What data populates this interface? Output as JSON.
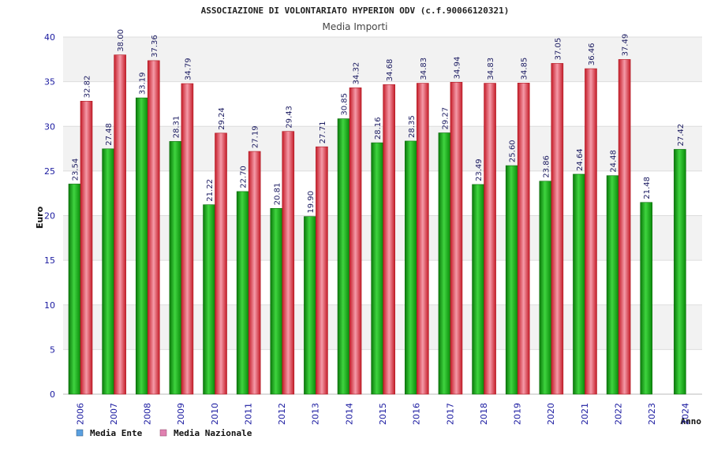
{
  "chart_data": {
    "type": "bar",
    "title": "ASSOCIAZIONE DI VOLONTARIATO HYPERION ODV (c.f.90066120321)",
    "subtitle": "Media Importi",
    "xlabel": "Anno",
    "ylabel": "Euro",
    "ylim": [
      0,
      40
    ],
    "yticks": [
      "0",
      "5",
      "10",
      "15",
      "20",
      "25",
      "30",
      "35",
      "40"
    ],
    "grid": true,
    "legend_position": "bottom-left",
    "categories": [
      "2006",
      "2007",
      "2008",
      "2009",
      "2010",
      "2011",
      "2012",
      "2013",
      "2014",
      "2015",
      "2016",
      "2017",
      "2018",
      "2019",
      "2020",
      "2021",
      "2022",
      "2023",
      "2024"
    ],
    "series": [
      {
        "name": "Media Ente",
        "color": "#1fb31f",
        "legend_color": "#5aa0e0",
        "values": [
          23.54,
          27.48,
          33.19,
          28.31,
          21.22,
          22.7,
          20.81,
          19.9,
          30.85,
          28.16,
          28.35,
          29.27,
          23.49,
          25.6,
          23.86,
          24.64,
          24.48,
          21.48,
          27.42
        ],
        "labels": [
          "23.54",
          "27.48",
          "33.19",
          "28.31",
          "21.22",
          "22.70",
          "20.81",
          "19.90",
          "30.85",
          "28.16",
          "28.35",
          "29.27",
          "23.49",
          "25.60",
          "23.86",
          "24.64",
          "24.48",
          "21.48",
          "27.42"
        ]
      },
      {
        "name": "Media Nazionale",
        "color": "#e0303c",
        "legend_color": "#e080b0",
        "values": [
          32.82,
          38.0,
          37.36,
          34.79,
          29.24,
          27.19,
          29.43,
          27.71,
          34.32,
          34.68,
          34.83,
          34.94,
          34.83,
          34.85,
          37.05,
          36.46,
          37.49,
          null,
          null
        ],
        "labels": [
          "32.82",
          "38.00",
          "37.36",
          "34.79",
          "29.24",
          "27.19",
          "29.43",
          "27.71",
          "34.32",
          "34.68",
          "34.83",
          "34.94",
          "34.83",
          "34.85",
          "37.05",
          "36.46",
          "37.49",
          null,
          null
        ]
      }
    ]
  },
  "colors": {
    "axis_text": "#1a1aa0",
    "title_text": "#222222",
    "label_text": "#1a1a60"
  }
}
